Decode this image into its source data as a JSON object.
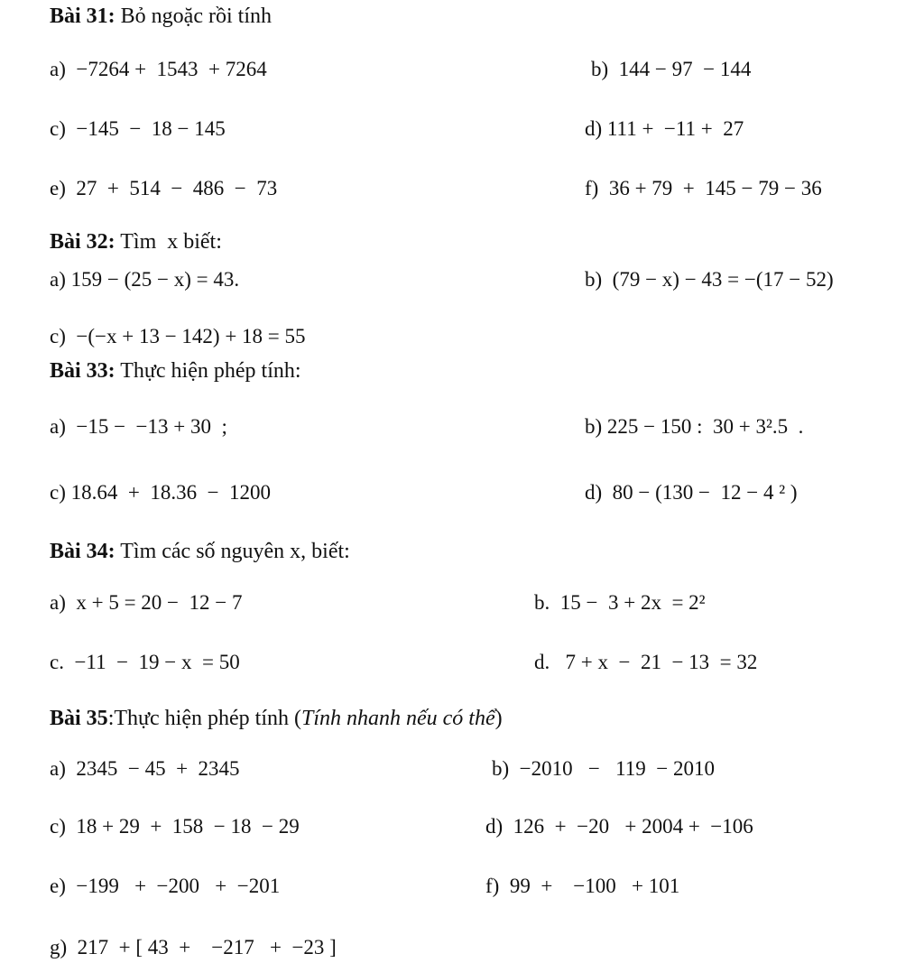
{
  "b31": {
    "num": "Bài 31:",
    "title": " Bỏ ngoặc rồi tính",
    "a": "a)  −7264 +  1543  + 7264",
    "b": "b)  144 − 97  − 144",
    "c": "c)  −145  −  18 − 145",
    "d": "d) 111 +  −11 +  27",
    "e": "e)  27  +  514  −  486  −  73",
    "f": "f)  36 + 79  +  145 − 79 − 36"
  },
  "b32": {
    "num": "Bài 32:",
    "title": " Tìm  x biết:",
    "a": "a) 159 − (25 − x) = 43.",
    "b": "b)  (79 − x) − 43 = −(17 − 52)",
    "c": "c)  −(−x + 13 − 142) + 18 = 55"
  },
  "b33": {
    "num": "Bài 33:",
    "title": " Thực hiện phép tính:",
    "a": "a)  −15 −  −13 + 30  ;",
    "b": "b) 225 − 150 :  30 + 3².5  .",
    "c": "c) 18.64  +  18.36  −  1200",
    "d": "d)  80 − (130 −  12 − 4 ² )"
  },
  "b34": {
    "num": "Bài 34:",
    "title": " Tìm các số nguyên x, biết:",
    "a": "a)  x + 5 = 20 −  12 − 7",
    "b": "b.  15 −  3 + 2x  = 2²",
    "c": "c.  −11  −  19 − x  = 50",
    "d": "d.   7 + x  −  21  − 13  = 32"
  },
  "b35": {
    "num": "Bài 35",
    "title": ":Thực hiện phép tính (",
    "title_italic": "Tính nhanh nếu có thể",
    "title_end": ")",
    "a": "a)  2345  − 45  +  2345",
    "b": "b)  −2010   −   119  − 2010",
    "c": "c)  18 + 29  +  158  − 18  − 29",
    "d": "d)  126  +  −20   + 2004 +  −106",
    "e": "e)  −199   +  −200   +  −201",
    "f": "f)  99  +    −100   + 101",
    "g": "g)  217  + [ 43  +    −217   +  −23 ]"
  }
}
